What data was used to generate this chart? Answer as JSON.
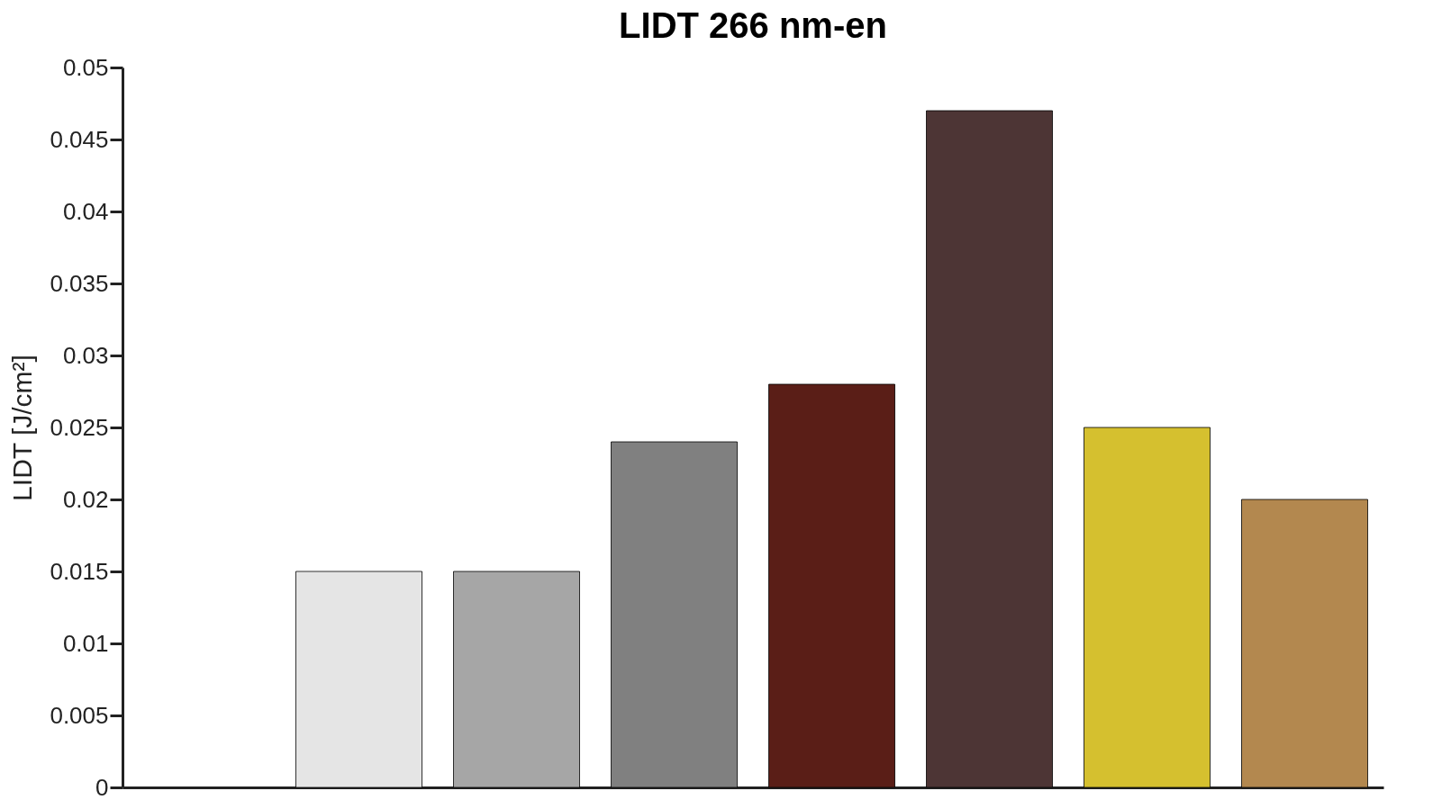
{
  "chart_data": {
    "type": "bar",
    "title": "LIDT 266 nm-en",
    "ylabel": "LIDT [J/cm²]",
    "categories": [
      null,
      null,
      null,
      null,
      null,
      null,
      null,
      null
    ],
    "values": [
      null,
      0.015,
      0.015,
      0.024,
      0.028,
      0.047,
      0.025,
      0.02
    ],
    "colors": [
      "#ffffff",
      "#e5e5e5",
      "#a6a6a6",
      "#808080",
      "#5a1e17",
      "#4d3535",
      "#d5c02f",
      "#b3884f"
    ],
    "ylim": [
      0,
      0.05
    ],
    "yticks": [
      0,
      0.005,
      0.01,
      0.015,
      0.02,
      0.025,
      0.03,
      0.035,
      0.04,
      0.045,
      0.05
    ],
    "tick_labels": "y",
    "grid": false,
    "legend": false
  }
}
